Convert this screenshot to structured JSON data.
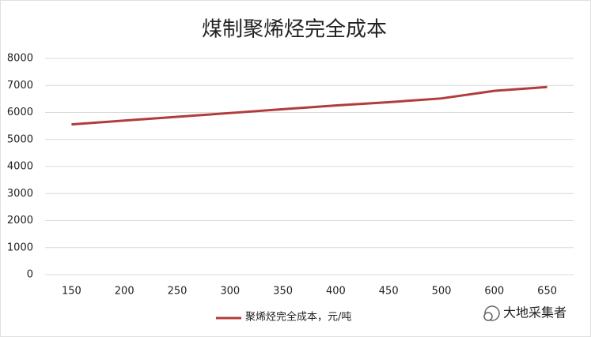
{
  "chart_data": {
    "type": "line",
    "title": "煤制聚烯烃完全成本",
    "categories": [
      "150",
      "200",
      "250",
      "300",
      "350",
      "400",
      "450",
      "500",
      "600",
      "650"
    ],
    "series": [
      {
        "name": "聚烯烃完全成本，元/吨",
        "color": "#b23c3c",
        "values": [
          5560,
          5700,
          5840,
          5980,
          6120,
          6260,
          6380,
          6520,
          6800,
          6940
        ]
      }
    ],
    "ylim": [
      0,
      8000
    ],
    "yticks": [
      0,
      1000,
      2000,
      3000,
      4000,
      5000,
      6000,
      7000,
      8000
    ],
    "grid": true,
    "legend": "bottom"
  },
  "watermark": "大地采集者"
}
